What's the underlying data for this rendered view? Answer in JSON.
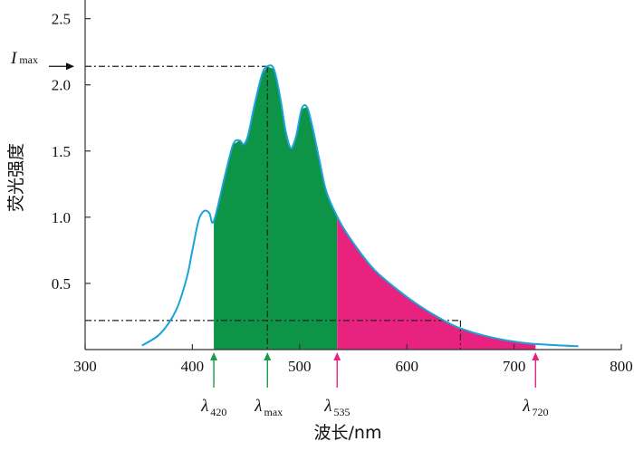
{
  "chart_data": {
    "type": "area",
    "xlabel": "波长/nm",
    "ylabel": "荧光强度",
    "xlim": [
      300,
      800
    ],
    "ylim": [
      0,
      2.6
    ],
    "x_ticks": [
      300,
      400,
      500,
      600,
      700,
      800
    ],
    "x_tick_labels": [
      "300",
      "400",
      "500",
      "600",
      "700",
      "800"
    ],
    "y_ticks": [
      0.5,
      1.0,
      1.5,
      2.0,
      2.5
    ],
    "y_tick_labels": [
      "0.5",
      "1.0",
      "1.5",
      "2.0",
      "2.5"
    ],
    "grid": false,
    "series": [
      {
        "x": [
          353,
          370,
          385,
          395,
          400,
          405,
          408,
          412,
          416,
          420,
          430,
          438,
          444,
          448,
          452,
          458,
          465,
          470,
          476,
          482,
          487,
          492,
          497,
          502,
          507,
          512,
          518,
          524,
          530,
          540,
          555,
          570,
          590,
          610,
          630,
          650,
          680,
          710,
          735,
          760
        ],
        "y": [
          0.03,
          0.12,
          0.3,
          0.55,
          0.75,
          0.95,
          1.02,
          1.05,
          1.03,
          0.97,
          1.3,
          1.55,
          1.58,
          1.55,
          1.62,
          1.85,
          2.08,
          2.14,
          2.12,
          1.9,
          1.65,
          1.52,
          1.62,
          1.82,
          1.83,
          1.68,
          1.45,
          1.22,
          1.09,
          0.93,
          0.75,
          0.6,
          0.46,
          0.34,
          0.24,
          0.16,
          0.09,
          0.05,
          0.035,
          0.025
        ]
      }
    ],
    "colors": {
      "curve": "#1aa3d9",
      "fill_green": "#0e9447",
      "fill_magenta": "#e8227f",
      "arrow_green": "#1c9a4a",
      "arrow_magenta": "#e8227f",
      "axis": "#333333"
    },
    "fill_regions": [
      {
        "from": 420,
        "to": 535,
        "color": "fill_green"
      },
      {
        "from": 535,
        "to": 720,
        "color": "fill_magenta"
      }
    ],
    "peak": {
      "label": "I",
      "label_sub": "max",
      "x": 470,
      "y": 2.14
    },
    "baseline_level": 0.22,
    "baseline_end_x": 650,
    "markers": [
      {
        "x": 420,
        "label": "λ",
        "sub": "420",
        "color": "arrow_green"
      },
      {
        "x": 470,
        "label": "λ",
        "sub": "max",
        "color": "arrow_green"
      },
      {
        "x": 535,
        "label": "λ",
        "sub": "535",
        "color": "arrow_magenta"
      },
      {
        "x": 720,
        "label": "λ",
        "sub": "720",
        "color": "arrow_magenta"
      }
    ]
  }
}
